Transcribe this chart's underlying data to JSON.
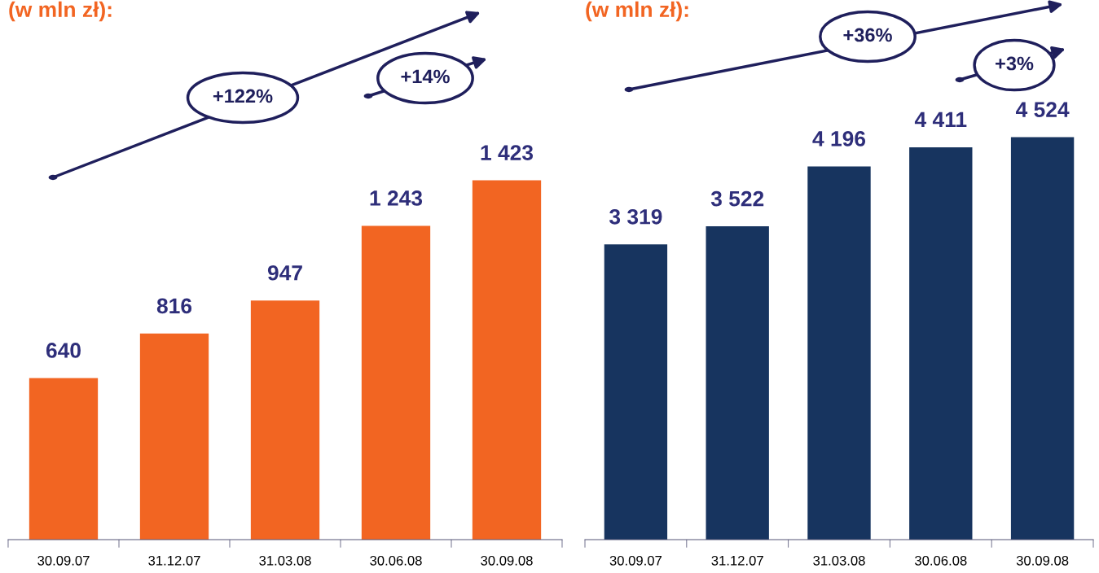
{
  "chart_data": [
    {
      "type": "bar",
      "title": "(w mln zł):",
      "categories": [
        "30.09.07",
        "31.12.07",
        "31.03.08",
        "30.06.08",
        "30.09.08"
      ],
      "values": [
        640,
        816,
        947,
        1243,
        1423
      ],
      "color": "#f26522",
      "data_labels": true,
      "value_labels": [
        "640",
        "816",
        "947",
        "1 243",
        "1 423"
      ],
      "annotations": [
        "+122%",
        "+14%"
      ]
    },
    {
      "type": "bar",
      "title": "(w mln zł):",
      "categories": [
        "30.09.07",
        "31.12.07",
        "31.03.08",
        "30.06.08",
        "30.09.08"
      ],
      "values": [
        3319,
        3522,
        4196,
        4411,
        4524
      ],
      "color": "#17345f",
      "data_labels": true,
      "value_labels": [
        "3 319",
        "3 522",
        "4 196",
        "4 411",
        "4 524"
      ],
      "annotations": [
        "+36%",
        "+3%"
      ]
    }
  ]
}
